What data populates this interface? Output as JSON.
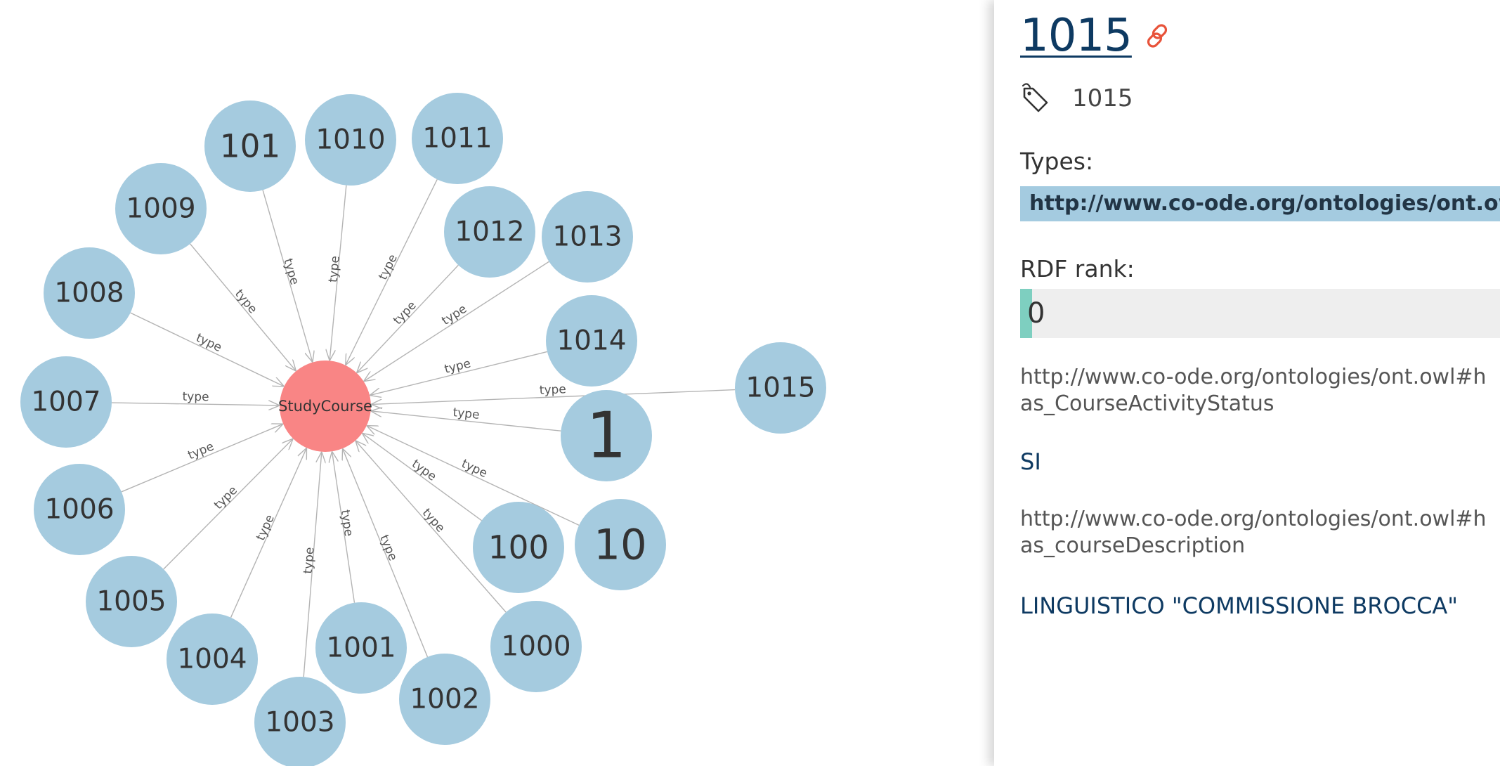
{
  "graph": {
    "center": {
      "label": "StudyCourse",
      "color": "#f98585"
    },
    "node_color": "#a5cbdf",
    "edge_label": "type",
    "nodes": [
      "101",
      "1010",
      "1011",
      "1009",
      "1012",
      "1013",
      "1008",
      "1014",
      "1007",
      "1015",
      "1",
      "1006",
      "100",
      "10",
      "1005",
      "1004",
      "1001",
      "1000",
      "1002",
      "1003"
    ]
  },
  "panel": {
    "title": "1015",
    "label": "1015",
    "types_heading": "Types:",
    "type_chip": "http://www.co-ode.org/ontologies/ont.owl#StudyCourse",
    "rdf_rank_heading": "RDF rank:",
    "rdf_rank_value": "0",
    "rdf_rank_fraction": 0,
    "properties": [
      {
        "key": "http://www.co-ode.org/ontologies/ont.owl#has_CourseActivityStatus",
        "value": "SI"
      },
      {
        "key": "http://www.co-ode.org/ontologies/ont.owl#has_courseDescription",
        "value": "LINGUISTICO \"COMMISSIONE BROCCA\""
      }
    ],
    "icons": {
      "link": "link-icon",
      "label": "tag-icon"
    },
    "colors": {
      "title": "#0e3a62",
      "link_icon": "#e8533a",
      "chip": "#a4cbe0",
      "rank_fill": "#7ecfc0"
    }
  }
}
